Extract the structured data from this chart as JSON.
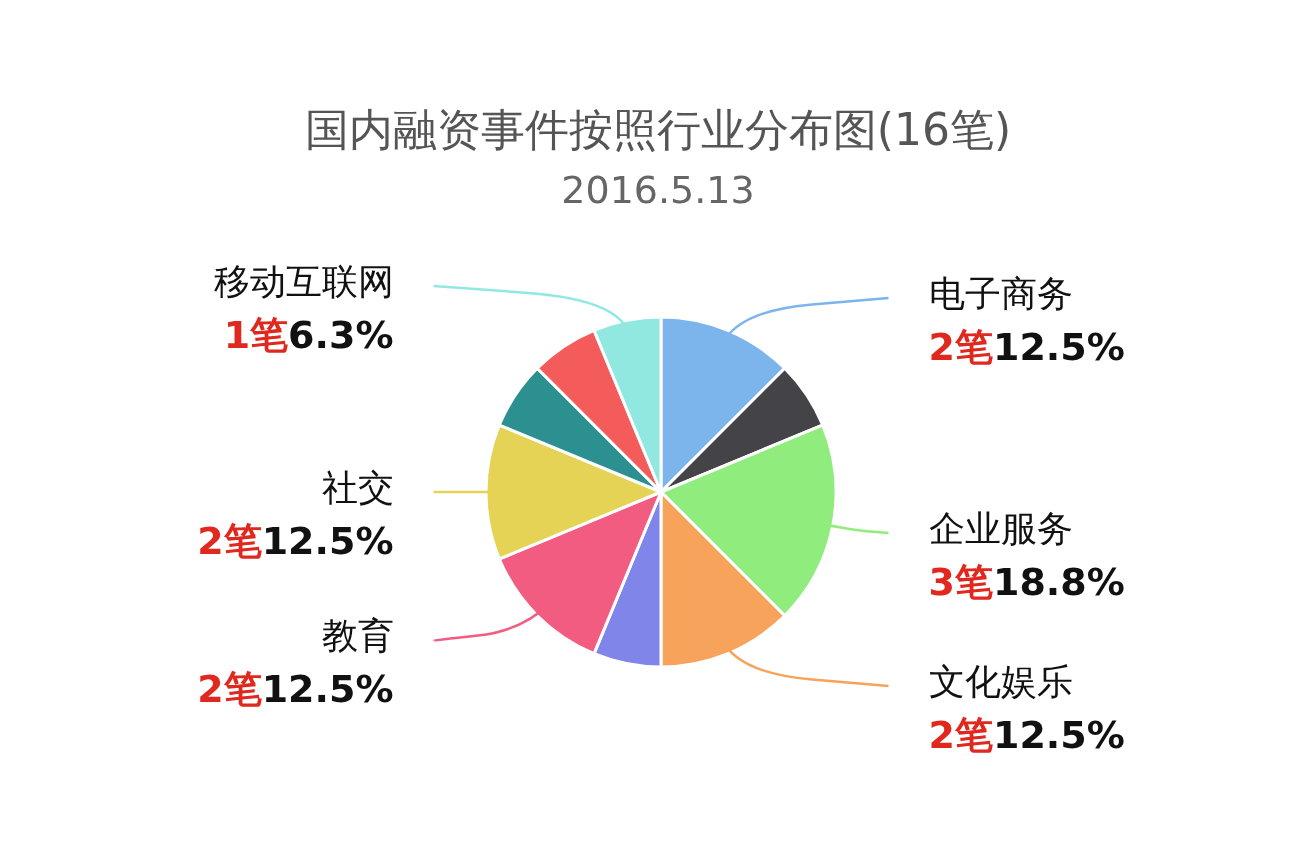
{
  "chart_data": {
    "type": "pie",
    "title": "国内融资事件按照行业分布图(16笔)",
    "subtitle": "2016.5.13",
    "categories": [
      "电子商务",
      null,
      "企业服务",
      "文化娱乐",
      null,
      "教育",
      "社交",
      null,
      null,
      "移动互联网"
    ],
    "values": [
      2,
      1,
      3,
      2,
      1,
      2,
      2,
      1,
      1,
      1
    ],
    "value_labels": [
      "2笔12.5%",
      null,
      "3笔18.8%",
      "2笔12.5%",
      null,
      "2笔12.5%",
      "2笔12.5%",
      null,
      null,
      "1笔6.3%"
    ],
    "colors": [
      "#7cb5ec",
      "#434348",
      "#90ed7d",
      "#f7a35c",
      "#8085e9",
      "#f15c80",
      "#e4d354",
      "#2b908f",
      "#f45b5b",
      "#91e8e1"
    ],
    "legend": false
  }
}
